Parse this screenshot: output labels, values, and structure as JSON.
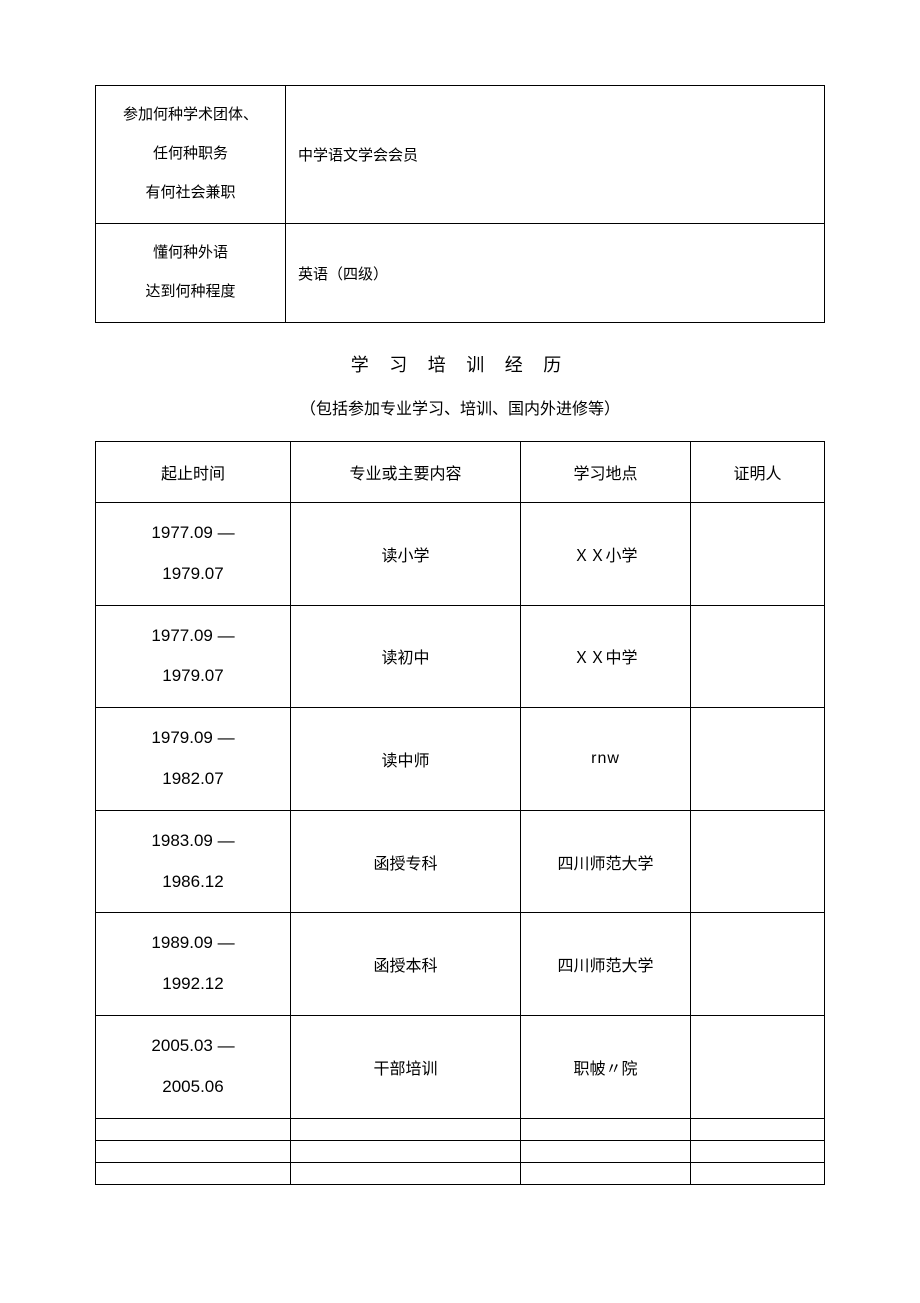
{
  "info_table": {
    "rows": [
      {
        "label_lines": [
          "参加何种学术团体、",
          "任何种职务",
          "有何社会兼职"
        ],
        "value": "中学语文学会会员"
      },
      {
        "label_lines": [
          "懂何种外语",
          "达到何种程度"
        ],
        "value": "英语（四级）"
      }
    ]
  },
  "section": {
    "title": "学 习 培 训 经 历",
    "subtitle": "（包括参加专业学习、培训、国内外进修等）"
  },
  "edu_table": {
    "headers": [
      "起止时间",
      "专业或主要内容",
      "学习地点",
      "证明人"
    ],
    "rows": [
      {
        "time_lines": [
          "1977.09 —",
          "1979.07"
        ],
        "content": "读小学",
        "place": "ＸＸ小学",
        "witness": ""
      },
      {
        "time_lines": [
          "1977.09 —",
          "1979.07"
        ],
        "content": "读初中",
        "place": "ＸＸ中学",
        "witness": ""
      },
      {
        "time_lines": [
          "1979.09 —",
          "1982.07"
        ],
        "content": "读中师",
        "place": "rnw",
        "place_class": "rnw",
        "witness": ""
      },
      {
        "time_lines": [
          "1983.09 —",
          "1986.12"
        ],
        "content": "函授专科",
        "place": "四川师范大学",
        "witness": ""
      },
      {
        "time_lines": [
          "1989.09 —",
          "1992.12"
        ],
        "content": "函授本科",
        "place": "四川师范大学",
        "witness": ""
      },
      {
        "time_lines": [
          "2005.03 —",
          "2005.06"
        ],
        "content": "干部培训",
        "place": "职帔〃院",
        "witness": ""
      }
    ],
    "empty_rows": 3
  },
  "colors": {
    "bg": "#ffffff",
    "text": "#000000",
    "border": "#000000"
  }
}
